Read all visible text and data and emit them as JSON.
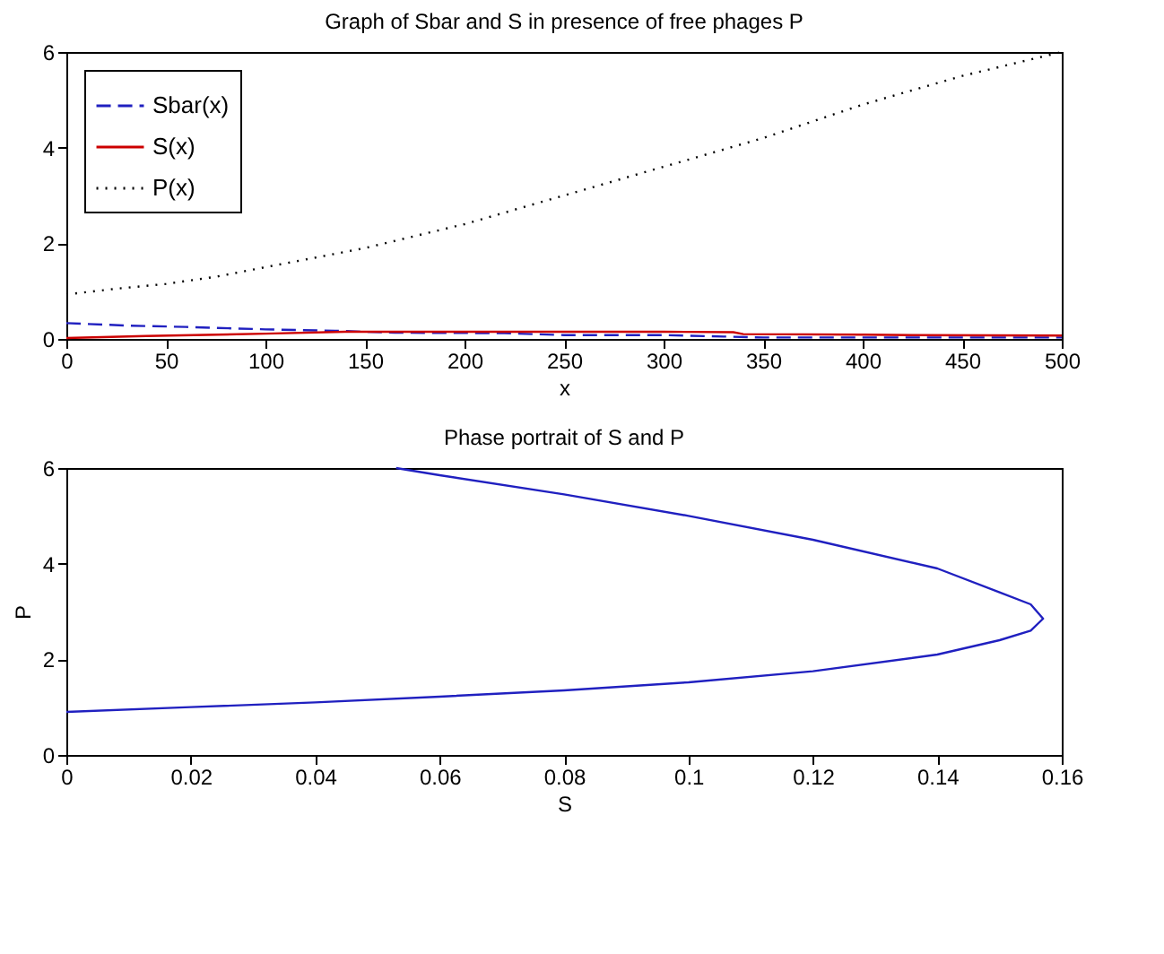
{
  "chart_data": [
    {
      "type": "line",
      "title": "Graph of Sbar and S in presence of free phages P",
      "xlabel": "x",
      "xlim": [
        0,
        500
      ],
      "xticks": [
        0,
        50,
        100,
        150,
        200,
        250,
        300,
        350,
        400,
        450,
        500
      ],
      "ylim": [
        0,
        6
      ],
      "yticks": [
        0,
        2,
        4,
        6
      ],
      "grid": false,
      "legend": "top left",
      "series": [
        {
          "name": "Sbar(x)",
          "color": "#2020c0",
          "line_style": "dashed",
          "x": [
            0,
            30,
            60,
            100,
            135,
            165,
            220,
            250,
            300,
            330,
            350,
            400,
            450,
            500
          ],
          "values": [
            0.33,
            0.28,
            0.25,
            0.2,
            0.17,
            0.13,
            0.12,
            0.08,
            0.08,
            0.05,
            0.03,
            0.03,
            0.03,
            0.03
          ]
        },
        {
          "name": "S(x)",
          "color": "#cc0000",
          "line_style": "solid",
          "x": [
            0,
            40,
            100,
            140,
            200,
            250,
            300,
            335,
            340,
            400,
            425,
            500
          ],
          "values": [
            0.02,
            0.06,
            0.11,
            0.15,
            0.15,
            0.15,
            0.15,
            0.14,
            0.1,
            0.09,
            0.08,
            0.07
          ]
        },
        {
          "name": "P(x)",
          "color": "#000000",
          "line_style": "dotted",
          "x": [
            0,
            25,
            50,
            75,
            100,
            150,
            200,
            250,
            300,
            350,
            400,
            450,
            500
          ],
          "values": [
            0.93,
            1.05,
            1.15,
            1.3,
            1.5,
            1.9,
            2.4,
            3.0,
            3.6,
            4.2,
            4.9,
            5.5,
            6.0
          ]
        }
      ]
    },
    {
      "type": "line",
      "title": "Phase portrait of S and P",
      "xlabel": "S",
      "ylabel": "P",
      "xlim": [
        0,
        0.16
      ],
      "xticks": [
        0,
        0.02,
        0.04,
        0.06,
        0.08,
        0.1,
        0.12,
        0.14,
        0.16
      ],
      "ylim": [
        0,
        6
      ],
      "yticks": [
        0,
        2,
        4,
        6
      ],
      "grid": false,
      "series": [
        {
          "color": "#2020c0",
          "line_style": "solid",
          "x": [
            0,
            0.02,
            0.04,
            0.06,
            0.08,
            0.1,
            0.12,
            0.14,
            0.15,
            0.155,
            0.157,
            0.155,
            0.15,
            0.14,
            0.12,
            0.1,
            0.08,
            0.06,
            0.053
          ],
          "values": [
            0.9,
            1.0,
            1.1,
            1.22,
            1.35,
            1.52,
            1.75,
            2.1,
            2.4,
            2.6,
            2.85,
            3.15,
            3.4,
            3.9,
            4.5,
            5.0,
            5.45,
            5.85,
            6.0
          ]
        }
      ]
    }
  ]
}
